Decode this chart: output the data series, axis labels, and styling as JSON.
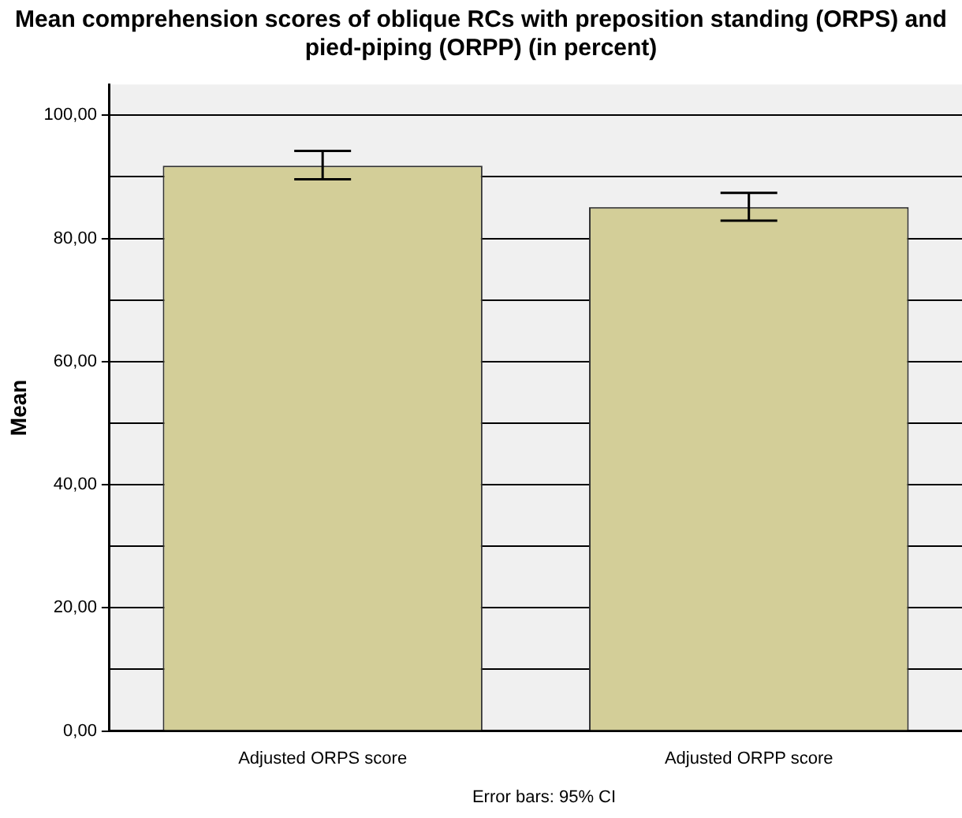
{
  "chart_data": {
    "type": "bar",
    "title": "Mean comprehension scores of oblique RCs with preposition standing (ORPS) and pied-piping (ORPP) (in percent)",
    "ylabel": "Mean",
    "categories": [
      "Adjusted ORPS score",
      "Adjusted ORPP score"
    ],
    "values": [
      91.8,
      85.1
    ],
    "color": "#d3ce98",
    "errors": [
      [
        89.6,
        94.2
      ],
      [
        82.9,
        87.4
      ]
    ],
    "ylim": [
      0,
      105
    ],
    "yticks": [
      {
        "value": 0,
        "label": "0,00"
      },
      {
        "value": 10,
        "label": null
      },
      {
        "value": 20,
        "label": "20,00"
      },
      {
        "value": 30,
        "label": null
      },
      {
        "value": 40,
        "label": "40,00"
      },
      {
        "value": 50,
        "label": null
      },
      {
        "value": 60,
        "label": "60,00"
      },
      {
        "value": 70,
        "label": null
      },
      {
        "value": 80,
        "label": "80,00"
      },
      {
        "value": 90,
        "label": null
      },
      {
        "value": 100,
        "label": "100,00"
      }
    ],
    "grid": true,
    "annotations": [
      "Error bars: 95% CI"
    ]
  }
}
